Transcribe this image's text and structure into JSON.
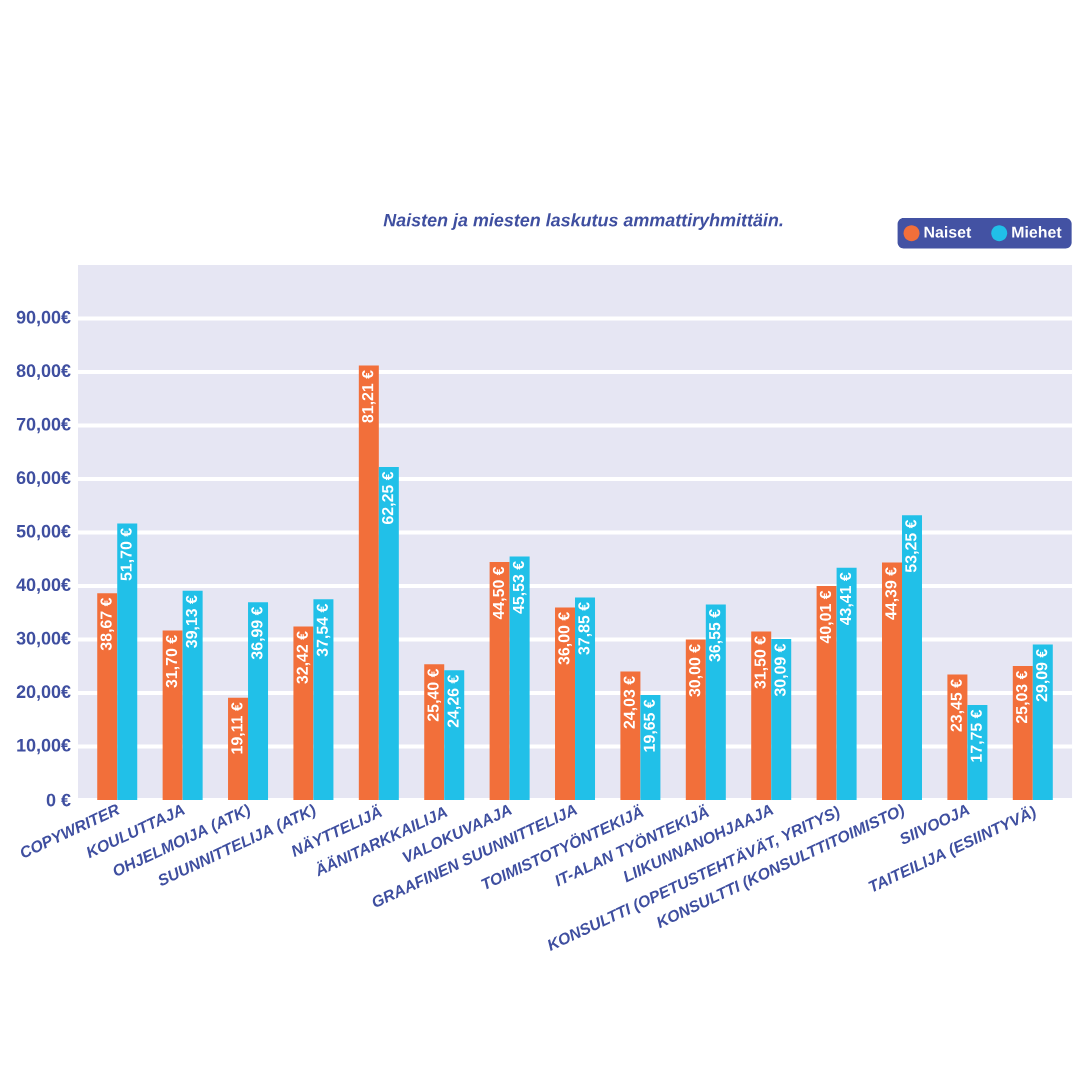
{
  "chart_data": {
    "type": "bar",
    "title": "Naisten ja miesten laskutus ammattiryhmittäin.",
    "categories": [
      "COPYWRITER",
      "KOULUTTAJA",
      "OHJELMOIJA (ATK)",
      "SUUNNITTELIJA (ATK)",
      "NÄYTTELIJÄ",
      "ÄÄNITARKKAILIJA",
      "VALOKUVAAJA",
      "GRAAFINEN SUUNNITTELIJA",
      "TOIMISTOTYÖNTEKIJÄ",
      "IT-ALAN TYÖNTEKIJÄ",
      "LIIKUNNANOHJAAJA",
      "KONSULTTI (OPETUSTEHTÄVÄT, YRITYS)",
      "KONSULTTI (KONSULTTITOIMISTO)",
      "SIIVOOJA",
      "TAITEILIJA (ESIINTYVÄ)"
    ],
    "series": [
      {
        "name": "Naiset",
        "color": "#f26f3a",
        "values": [
          38.67,
          31.7,
          19.11,
          32.42,
          81.21,
          25.4,
          44.5,
          36.0,
          24.03,
          30.0,
          31.5,
          40.01,
          44.39,
          23.45,
          25.03
        ],
        "value_labels": [
          "38,67 €",
          "31,70 €",
          "19,11 €",
          "32,42 €",
          "81,21 €",
          "25,40 €",
          "44,50 €",
          "36,00 €",
          "24,03 €",
          "30,00 €",
          "31,50 €",
          "40,01 €",
          "44,39 €",
          "23,45 €",
          "25,03 €"
        ]
      },
      {
        "name": "Miehet",
        "color": "#21c0e8",
        "values": [
          51.7,
          39.13,
          36.99,
          37.54,
          62.25,
          24.26,
          45.53,
          37.85,
          19.65,
          36.55,
          30.09,
          43.41,
          53.25,
          17.75,
          29.09
        ],
        "value_labels": [
          "51,70 €",
          "39,13 €",
          "36,99 €",
          "37,54 €",
          "62,25 €",
          "24,26 €",
          "45,53 €",
          "37,85 €",
          "19,65 €",
          "36,55 €",
          "30,09 €",
          "43,41 €",
          "53,25 €",
          "17,75 €",
          "29,09 €"
        ]
      }
    ],
    "ylim": [
      0,
      100
    ],
    "yticks": [
      {
        "value": 0,
        "label": "0 €"
      },
      {
        "value": 10,
        "label": "10,00€"
      },
      {
        "value": 20,
        "label": "20,00€"
      },
      {
        "value": 30,
        "label": "30,00€"
      },
      {
        "value": 40,
        "label": "40,00€"
      },
      {
        "value": 50,
        "label": "50,00€"
      },
      {
        "value": 60,
        "label": "60,00€"
      },
      {
        "value": 70,
        "label": "70,00€"
      },
      {
        "value": 80,
        "label": "80,00€"
      },
      {
        "value": 90,
        "label": "90,00€"
      }
    ],
    "grid": "y",
    "legend": "top right"
  }
}
